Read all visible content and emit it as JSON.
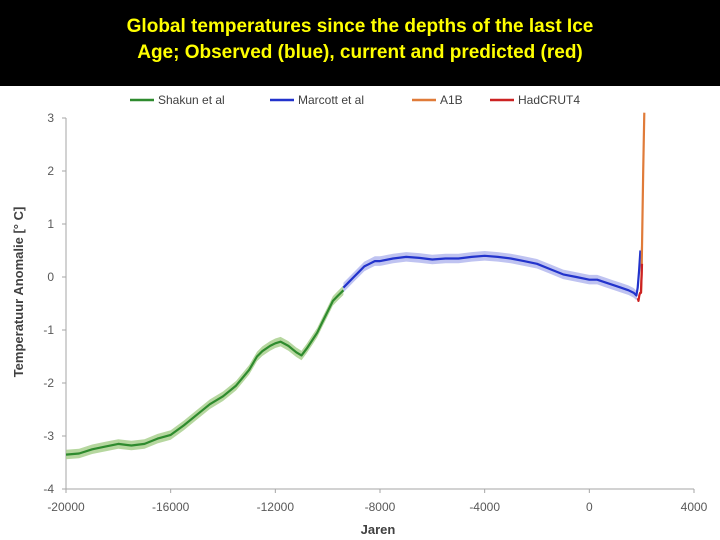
{
  "title": {
    "line1": "Global temperatures since the depths of the last Ice",
    "line2": "Age; Observed (blue), current and predicted (red)"
  },
  "chart_data": {
    "type": "line",
    "xlabel": "Jaren",
    "ylabel": "Temperatuur Anomalie [° C]",
    "xlim": [
      -20000,
      4000
    ],
    "ylim": [
      -4,
      3
    ],
    "xticks": [
      "-20000",
      "-16000",
      "-12000",
      "-8000",
      "-4000",
      "0",
      "4000"
    ],
    "yticks": [
      "3",
      "2",
      "1",
      "0",
      "-1",
      "-2",
      "-3",
      "-4"
    ],
    "grid": false,
    "legend_position": "top",
    "series": [
      {
        "name": "Shakun et al",
        "color": "#2e8b2e",
        "band_color": "#a9d08e",
        "x": [
          -20000,
          -19500,
          -19000,
          -18500,
          -18000,
          -17500,
          -17000,
          -16500,
          -16000,
          -15500,
          -15000,
          -14500,
          -14000,
          -13500,
          -13000,
          -12700,
          -12500,
          -12200,
          -12000,
          -11800,
          -11500,
          -11200,
          -11000,
          -10800,
          -10600,
          -10400,
          -10200,
          -10000,
          -9800,
          -9600,
          -9400
        ],
        "y": [
          -3.35,
          -3.33,
          -3.25,
          -3.2,
          -3.15,
          -3.18,
          -3.15,
          -3.05,
          -2.98,
          -2.8,
          -2.6,
          -2.4,
          -2.25,
          -2.05,
          -1.75,
          -1.5,
          -1.4,
          -1.3,
          -1.25,
          -1.22,
          -1.3,
          -1.42,
          -1.48,
          -1.35,
          -1.2,
          -1.05,
          -0.85,
          -0.65,
          -0.45,
          -0.35,
          -0.25
        ]
      },
      {
        "name": "Marcott et al",
        "color": "#2233cc",
        "band_color": "#b4b9ee",
        "x": [
          -9400,
          -9200,
          -9000,
          -8800,
          -8600,
          -8400,
          -8200,
          -8000,
          -7500,
          -7000,
          -6500,
          -6000,
          -5500,
          -5000,
          -4500,
          -4000,
          -3500,
          -3000,
          -2500,
          -2000,
          -1500,
          -1000,
          -500,
          0,
          300,
          600,
          900,
          1200,
          1500,
          1700,
          1800,
          1850,
          1900,
          1950
        ],
        "y": [
          -0.2,
          -0.1,
          0,
          0.1,
          0.2,
          0.25,
          0.3,
          0.3,
          0.35,
          0.38,
          0.36,
          0.33,
          0.35,
          0.35,
          0.38,
          0.4,
          0.38,
          0.35,
          0.3,
          0.25,
          0.15,
          0.05,
          0,
          -0.05,
          -0.05,
          -0.1,
          -0.15,
          -0.2,
          -0.25,
          -0.3,
          -0.35,
          -0.2,
          0.1,
          0.5
        ]
      },
      {
        "name": "A1B",
        "color": "#e07b39",
        "x": [
          1980,
          2000,
          2020,
          2040,
          2060,
          2080,
          2100
        ],
        "y": [
          -0.3,
          0.2,
          0.8,
          1.4,
          2.0,
          2.6,
          3.1
        ]
      },
      {
        "name": "HadCRUT4",
        "color": "#cc2222",
        "x": [
          1850,
          1880,
          1910,
          1940,
          1970,
          2000,
          2012
        ],
        "y": [
          -0.4,
          -0.45,
          -0.35,
          -0.3,
          -0.3,
          0.05,
          0.25
        ]
      }
    ]
  }
}
